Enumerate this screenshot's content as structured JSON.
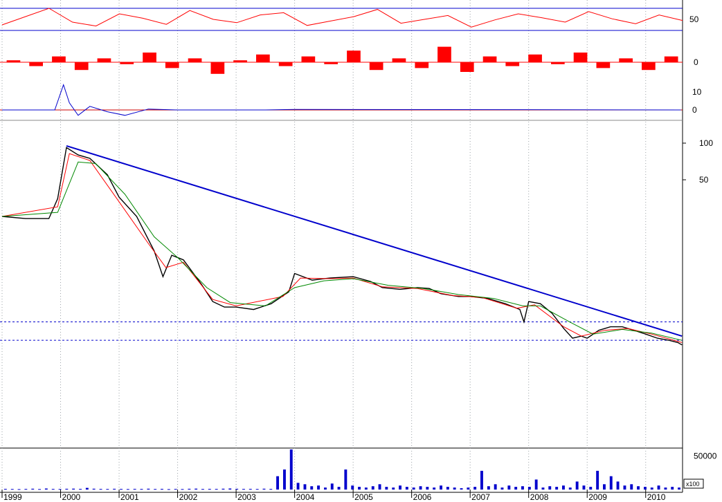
{
  "chart_data": [
    {
      "panel": "oscillator",
      "type": "line",
      "y_ticks": [
        {
          "value": 50,
          "label": "50"
        }
      ],
      "ylim": [
        20,
        80
      ],
      "reference_lines": [
        70,
        30
      ],
      "series": [
        {
          "color": "#ff0000",
          "values": [
            40,
            55,
            70,
            45,
            38,
            60,
            52,
            41,
            66,
            50,
            44,
            58,
            62,
            39,
            47,
            55,
            68,
            43,
            50,
            57,
            36,
            49,
            60,
            53,
            45,
            64,
            51,
            42,
            58,
            48
          ]
        }
      ]
    },
    {
      "panel": "momentum-histogram",
      "type": "bar",
      "y_ticks": [
        {
          "value": 0,
          "label": "0"
        }
      ],
      "ylim": [
        -10,
        10
      ],
      "series": [
        {
          "color": "#ff0000",
          "values": [
            1,
            -2,
            3,
            -4,
            2,
            -1,
            5,
            -3,
            2,
            -6,
            1,
            4,
            -2,
            3,
            -1,
            6,
            -4,
            2,
            -3,
            8,
            -5,
            3,
            -2,
            4,
            -1,
            5,
            -3,
            2,
            -4,
            3
          ]
        }
      ]
    },
    {
      "panel": "spike-indicator",
      "type": "line",
      "y_ticks": [
        {
          "value": 10,
          "label": "10"
        },
        {
          "value": 0,
          "label": "0"
        }
      ],
      "ylim": [
        -5,
        15
      ],
      "series": [
        {
          "color": "#0000cc",
          "points": [
            [
              1999.0,
              0
            ],
            [
              1999.9,
              0
            ],
            [
              2000.05,
              14
            ],
            [
              2000.15,
              4
            ],
            [
              2000.3,
              -3
            ],
            [
              2000.5,
              2
            ],
            [
              2000.8,
              -1
            ],
            [
              2001.1,
              -3
            ],
            [
              2001.5,
              0.5
            ],
            [
              2002.0,
              0
            ],
            [
              2003.5,
              0
            ],
            [
              2004.0,
              0.3
            ],
            [
              2010.6,
              0
            ]
          ]
        }
      ]
    },
    {
      "panel": "price",
      "type": "line",
      "y_scale": "log",
      "y_ticks": [
        {
          "value": 100,
          "label": "100"
        },
        {
          "value": 50,
          "label": "50"
        }
      ],
      "x_tick_labels": [
        "1999",
        "2000",
        "2001",
        "2002",
        "2003",
        "2004",
        "2005",
        "2006",
        "2007",
        "2008",
        "2009",
        "2010"
      ],
      "x_ticks": [
        1999,
        2000,
        2001,
        2002,
        2003,
        2004,
        2005,
        2006,
        2007,
        2008,
        2009,
        2010
      ],
      "xlim": [
        1999.0,
        2010.63
      ],
      "grid": true,
      "series": [
        {
          "color": "#000000",
          "points": [
            [
              1999.0,
              25
            ],
            [
              1999.4,
              24
            ],
            [
              1999.8,
              24
            ],
            [
              1999.95,
              35
            ],
            [
              2000.1,
              92
            ],
            [
              2000.3,
              80
            ],
            [
              2000.5,
              75
            ],
            [
              2000.8,
              55
            ],
            [
              2001.0,
              36
            ],
            [
              2001.3,
              25
            ],
            [
              2001.6,
              13
            ],
            [
              2001.75,
              8
            ],
            [
              2001.9,
              12
            ],
            [
              2002.1,
              11
            ],
            [
              2002.4,
              7
            ],
            [
              2002.6,
              5
            ],
            [
              2002.8,
              4.5
            ],
            [
              2003.0,
              4.5
            ],
            [
              2003.3,
              4.3
            ],
            [
              2003.6,
              4.8
            ],
            [
              2003.9,
              6
            ],
            [
              2004.0,
              8.5
            ],
            [
              2004.3,
              7.5
            ],
            [
              2004.6,
              7.8
            ],
            [
              2005.0,
              8
            ],
            [
              2005.3,
              7.3
            ],
            [
              2005.5,
              6.5
            ],
            [
              2005.8,
              6.3
            ],
            [
              2006.1,
              6.5
            ],
            [
              2006.3,
              6.4
            ],
            [
              2006.5,
              5.8
            ],
            [
              2006.8,
              5.5
            ],
            [
              2007.0,
              5.5
            ],
            [
              2007.3,
              5.3
            ],
            [
              2007.6,
              4.8
            ],
            [
              2007.85,
              4.3
            ],
            [
              2007.92,
              3.4
            ],
            [
              2008.0,
              5
            ],
            [
              2008.2,
              4.8
            ],
            [
              2008.4,
              4
            ],
            [
              2008.6,
              3
            ],
            [
              2008.75,
              2.5
            ],
            [
              2008.9,
              2.6
            ],
            [
              2009.0,
              2.5
            ],
            [
              2009.2,
              2.9
            ],
            [
              2009.4,
              3.1
            ],
            [
              2009.6,
              3.1
            ],
            [
              2009.8,
              2.9
            ],
            [
              2010.0,
              2.7
            ],
            [
              2010.2,
              2.5
            ],
            [
              2010.4,
              2.4
            ],
            [
              2010.55,
              2.3
            ],
            [
              2010.62,
              2.2
            ]
          ]
        },
        {
          "color": "#ff0000",
          "points": [
            [
              1999.0,
              25
            ],
            [
              1999.95,
              30
            ],
            [
              2000.15,
              82
            ],
            [
              2000.5,
              72
            ],
            [
              2001.0,
              33
            ],
            [
              2001.5,
              15
            ],
            [
              2001.8,
              9.5
            ],
            [
              2002.1,
              10.5
            ],
            [
              2002.6,
              5.2
            ],
            [
              2003.0,
              4.6
            ],
            [
              2003.8,
              5.5
            ],
            [
              2004.1,
              7.8
            ],
            [
              2004.6,
              7.7
            ],
            [
              2005.0,
              7.8
            ],
            [
              2005.5,
              6.6
            ],
            [
              2006.1,
              6.4
            ],
            [
              2006.7,
              5.6
            ],
            [
              2007.2,
              5.4
            ],
            [
              2007.8,
              4.4
            ],
            [
              2008.1,
              4.7
            ],
            [
              2008.6,
              3.1
            ],
            [
              2008.9,
              2.6
            ],
            [
              2009.3,
              2.9
            ],
            [
              2009.7,
              3.0
            ],
            [
              2010.1,
              2.7
            ],
            [
              2010.62,
              2.3
            ]
          ]
        },
        {
          "color": "#008800",
          "points": [
            [
              1999.0,
              25
            ],
            [
              1999.95,
              27
            ],
            [
              2000.3,
              70
            ],
            [
              2000.6,
              68
            ],
            [
              2001.1,
              38
            ],
            [
              2001.6,
              17
            ],
            [
              2002.0,
              11.5
            ],
            [
              2002.5,
              6.5
            ],
            [
              2002.9,
              4.9
            ],
            [
              2003.5,
              4.6
            ],
            [
              2004.0,
              6.5
            ],
            [
              2004.5,
              7.4
            ],
            [
              2005.0,
              7.7
            ],
            [
              2005.6,
              6.8
            ],
            [
              2006.2,
              6.4
            ],
            [
              2006.8,
              5.7
            ],
            [
              2007.4,
              5.3
            ],
            [
              2007.9,
              4.6
            ],
            [
              2008.2,
              4.6
            ],
            [
              2008.7,
              3.4
            ],
            [
              2009.1,
              2.7
            ],
            [
              2009.6,
              2.95
            ],
            [
              2010.1,
              2.75
            ],
            [
              2010.62,
              2.4
            ]
          ]
        }
      ],
      "trendline": {
        "color": "#0000cc",
        "from": [
          2000.1,
          95
        ],
        "to": [
          2010.62,
          2.6
        ]
      },
      "reference_lines": [
        3.4,
        2.4
      ]
    },
    {
      "panel": "volume",
      "type": "bar",
      "y_ticks": [
        {
          "value": 50000,
          "label": "50000"
        }
      ],
      "unit_label": "x100",
      "ylim": [
        0,
        60000
      ],
      "series": [
        {
          "color": "#0000cc",
          "values": [
            1000,
            800,
            600,
            900,
            1200,
            700,
            1500,
            900,
            800,
            1100,
            1300,
            1000,
            2500,
            1200,
            900,
            800,
            1100,
            900,
            700,
            1000,
            900,
            1200,
            800,
            1000,
            600,
            900,
            700,
            1100,
            1300,
            800,
            1000,
            900,
            1200,
            1500,
            1100,
            900,
            1000,
            800,
            1200,
            900,
            20000,
            30000,
            60000,
            10000,
            8000,
            5000,
            6000,
            3000,
            9000,
            4000,
            30000,
            6000,
            4000,
            3000,
            5000,
            8000,
            4000,
            3000,
            6000,
            4000,
            3000,
            5000,
            4000,
            3000,
            6000,
            4000,
            3000,
            2000,
            3000,
            4000,
            28000,
            5000,
            8000,
            3000,
            6000,
            4000,
            5000,
            4000,
            15000,
            3000,
            5000,
            4000,
            6000,
            3000,
            12000,
            6000,
            4000,
            28000,
            8000,
            20000,
            12000,
            6000,
            8000,
            5000,
            4000,
            3000,
            6000,
            3000,
            4000,
            3000
          ]
        }
      ]
    }
  ]
}
